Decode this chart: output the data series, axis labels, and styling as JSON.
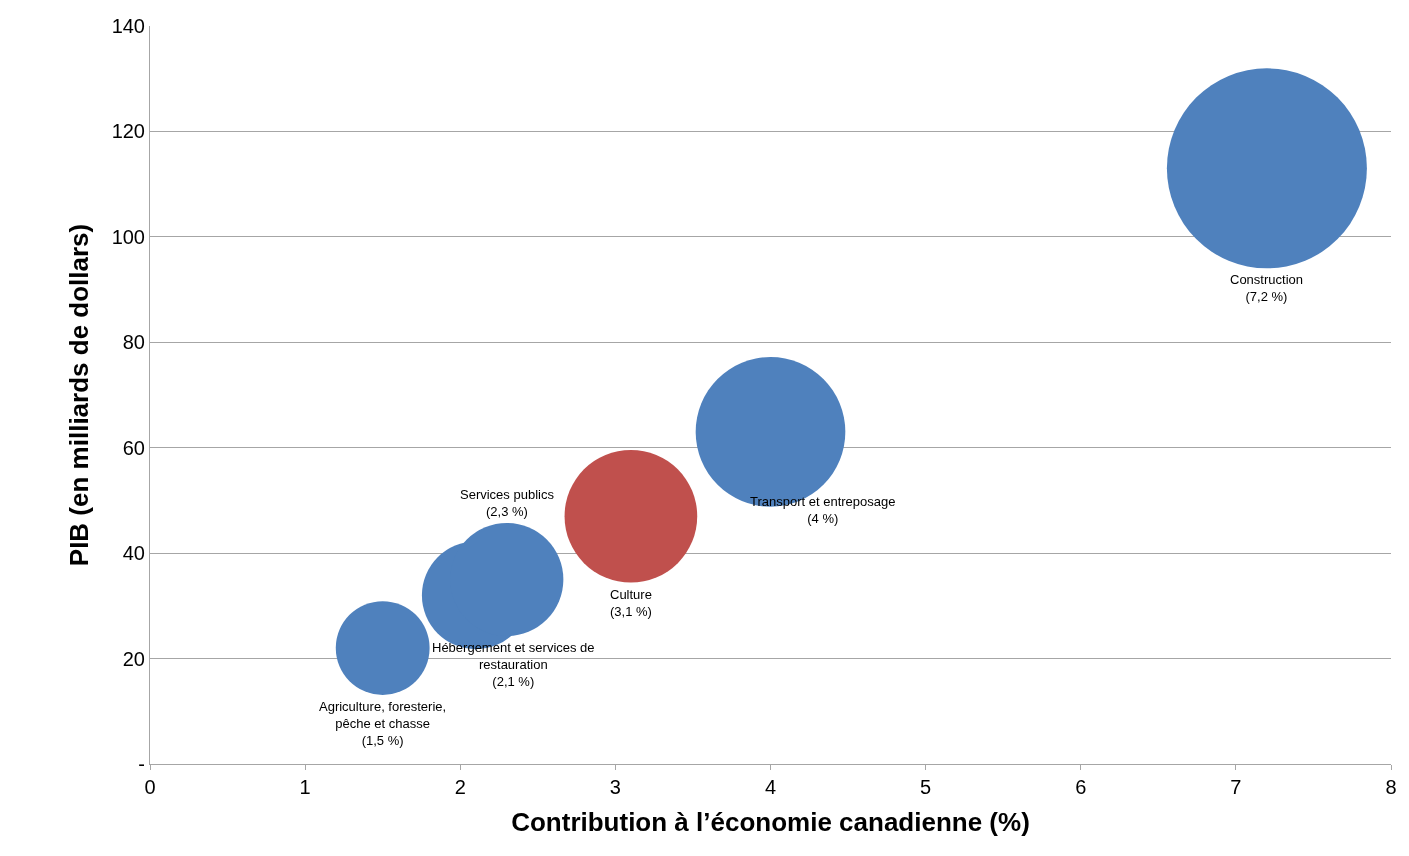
{
  "chart_data": {
    "type": "bubble",
    "xlabel": "Contribution à l’économie canadienne (%)",
    "ylabel": "PIB (en milliards de dollars)",
    "x": [
      1.5,
      2.1,
      2.3,
      3.1,
      4,
      7.2
    ],
    "values": [
      22,
      32,
      35,
      47,
      63,
      113
    ],
    "sizes": [
      0.22,
      0.29,
      0.32,
      0.44,
      0.56,
      1
    ],
    "colors": [
      "#4f81bd",
      "#4f81bd",
      "#4f81bd",
      "#c0504d",
      "#4f81bd",
      "#4f81bd"
    ],
    "xlim": [
      0,
      8
    ],
    "xticks": [
      0,
      1,
      2,
      3,
      4,
      5,
      6,
      7,
      8
    ],
    "ylim": [
      0,
      140
    ],
    "yticks": [
      {
        "value": 0,
        "label": "-"
      },
      20,
      40,
      60,
      80,
      100,
      120,
      140
    ],
    "grid": "y",
    "legend": false,
    "annotations": [
      "Agriculture, foresterie,\npêche et chasse\n(1,5 %)",
      "Hébergement et services de\nrestauration\n(2,1 %)",
      "Services publics\n(2,3 %)",
      "Culture\n(3,1 %)",
      "Transport et entreposage\n(4 %)",
      "Construction\n(7,2 %)"
    ]
  }
}
